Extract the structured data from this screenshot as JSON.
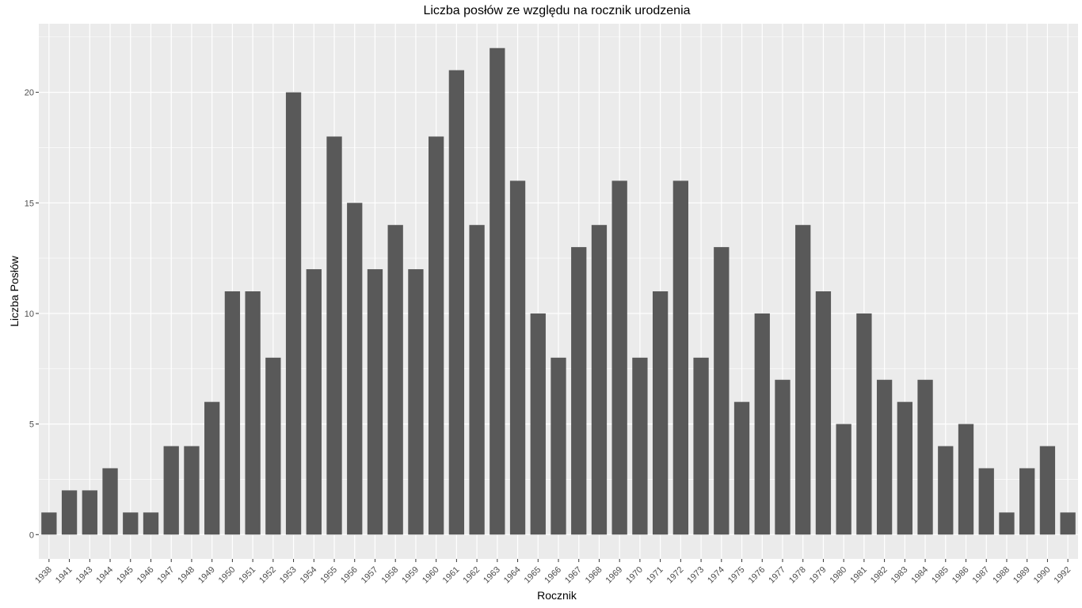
{
  "chart_data": {
    "type": "bar",
    "title": "Liczba posłów ze względu na rocznik urodzenia",
    "xlabel": "Rocznik",
    "ylabel": "Liczba Posłów",
    "ylim": [
      -1.1,
      23.1
    ],
    "yticks": [
      0,
      5,
      10,
      15,
      20
    ],
    "grid": true,
    "colors": {
      "panel": "#ebebeb",
      "grid": "#ffffff",
      "bar": "#595959",
      "tick_text": "#4d4d4d"
    },
    "categories": [
      "1938",
      "1941",
      "1943",
      "1944",
      "1945",
      "1946",
      "1947",
      "1948",
      "1949",
      "1950",
      "1951",
      "1952",
      "1953",
      "1954",
      "1955",
      "1956",
      "1957",
      "1958",
      "1959",
      "1960",
      "1961",
      "1962",
      "1963",
      "1964",
      "1965",
      "1966",
      "1967",
      "1968",
      "1969",
      "1970",
      "1971",
      "1972",
      "1973",
      "1974",
      "1975",
      "1976",
      "1977",
      "1978",
      "1979",
      "1980",
      "1981",
      "1982",
      "1983",
      "1984",
      "1985",
      "1986",
      "1987",
      "1988",
      "1989",
      "1990",
      "1992"
    ],
    "values": [
      1,
      2,
      2,
      3,
      1,
      1,
      4,
      4,
      6,
      11,
      11,
      8,
      20,
      12,
      18,
      15,
      12,
      14,
      12,
      18,
      21,
      14,
      22,
      16,
      10,
      8,
      13,
      14,
      16,
      8,
      11,
      16,
      8,
      13,
      6,
      10,
      7,
      14,
      11,
      5,
      10,
      7,
      6,
      7,
      4,
      5,
      3,
      1,
      3,
      4,
      1
    ]
  }
}
